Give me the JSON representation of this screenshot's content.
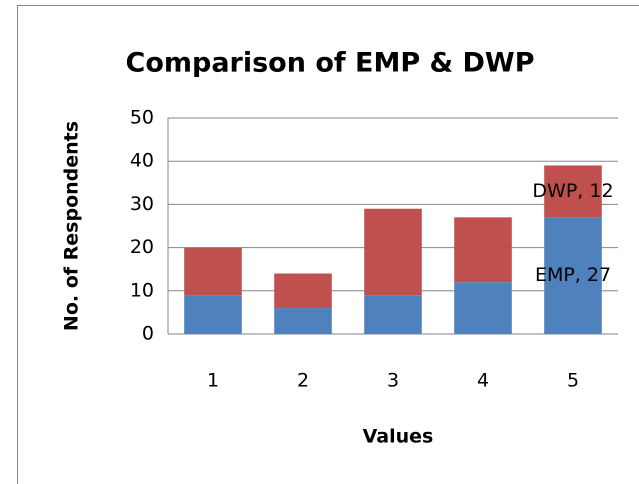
{
  "chart_data": {
    "type": "stacked_bar",
    "title": "Comparison of EMP & DWP",
    "x_label": "Values",
    "y_label": "No. of Respondents",
    "categories": [
      "1",
      "2",
      "3",
      "4",
      "5"
    ],
    "series": [
      {
        "name": "EMP",
        "color": "#4f81bd",
        "values": [
          9,
          6,
          9,
          12,
          27
        ],
        "value_labels": [
          null,
          null,
          null,
          null,
          "EMP, 27"
        ]
      },
      {
        "name": "DWP",
        "color": "#c0504d",
        "values": [
          11,
          8,
          20,
          15,
          12
        ],
        "value_labels": [
          null,
          null,
          null,
          null,
          "DWP, 12"
        ]
      }
    ],
    "ylim": [
      0,
      50
    ],
    "yticks": [
      0,
      10,
      20,
      30,
      40,
      50
    ],
    "grid": true
  }
}
